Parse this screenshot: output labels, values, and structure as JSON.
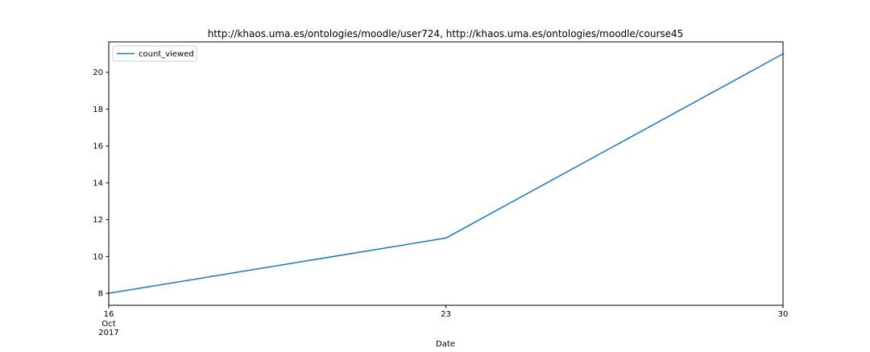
{
  "chart_data": {
    "type": "line",
    "title": "http://khaos.uma.es/ontologies/moodle/user724, http://khaos.uma.es/ontologies/moodle/course45",
    "xlabel": "Date",
    "ylabel": "",
    "x": [
      "2017-10-16",
      "2017-10-23",
      "2017-10-30"
    ],
    "series": [
      {
        "name": "count_viewed",
        "color": "#1f77b4",
        "values": [
          8,
          11,
          21
        ]
      }
    ],
    "x_ticks": [
      {
        "date": "2017-10-16",
        "label": "16",
        "sublabels": [
          "Oct",
          "2017"
        ]
      },
      {
        "date": "2017-10-23",
        "label": "23",
        "sublabels": []
      },
      {
        "date": "2017-10-30",
        "label": "30",
        "sublabels": []
      }
    ],
    "y_ticks": [
      8,
      10,
      12,
      14,
      16,
      18,
      20
    ],
    "xlim": [
      "2017-10-16",
      "2017-10-30"
    ],
    "ylim": [
      7.35,
      21.65
    ],
    "grid": false,
    "legend_position": "upper-left"
  }
}
